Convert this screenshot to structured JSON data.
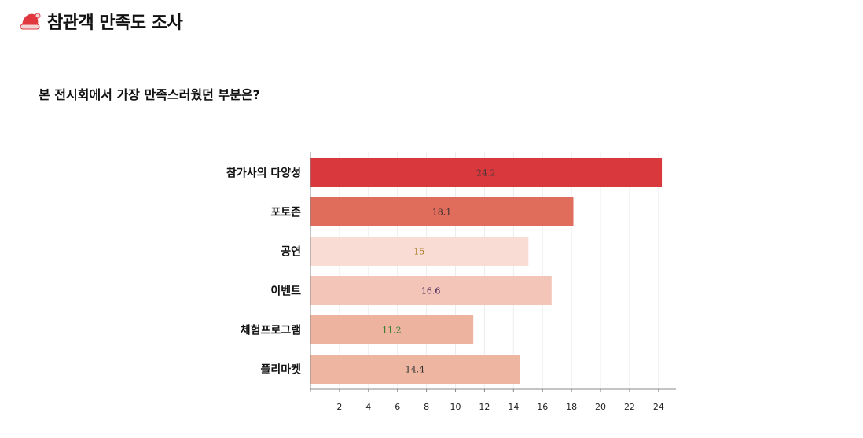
{
  "header": {
    "title": "참관객 만족도 조사",
    "logo_icon": "santa-hat-icon"
  },
  "question": "본 전시회에서 가장 만족스러웠던 부분은?",
  "chart_data": {
    "type": "bar",
    "orientation": "horizontal",
    "categories": [
      "참가사의 다양성",
      "포토존",
      "공연",
      "이벤트",
      "체험프로그램",
      "플리마켓"
    ],
    "values": [
      24.2,
      18.1,
      15,
      16.6,
      11.2,
      14.4
    ],
    "value_labels": [
      "24.2",
      "18.1",
      "15",
      "16.6",
      "11.2",
      "14.4"
    ],
    "bar_colors": [
      "#d9383d",
      "#e06c5c",
      "#f9ddd5",
      "#f3c5b9",
      "#eeb39f",
      "#eeb5a1"
    ],
    "label_colors": [
      "#4a3535",
      "#3d3030",
      "#a07010",
      "#3a1850",
      "#2f7a2f",
      "#333333"
    ],
    "xticks": [
      2,
      4,
      6,
      8,
      10,
      12,
      14,
      16,
      18,
      20,
      22,
      24
    ],
    "xlim": [
      0,
      25.2
    ],
    "grid": true,
    "title": "",
    "xlabel": "",
    "ylabel": ""
  }
}
